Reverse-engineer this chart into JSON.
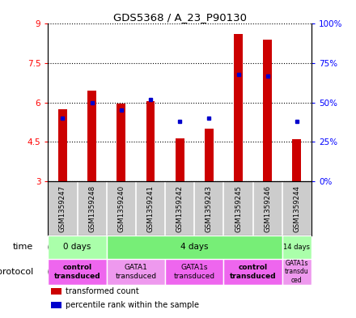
{
  "title": "GDS5368 / A_23_P90130",
  "samples": [
    "GSM1359247",
    "GSM1359248",
    "GSM1359240",
    "GSM1359241",
    "GSM1359242",
    "GSM1359243",
    "GSM1359245",
    "GSM1359246",
    "GSM1359244"
  ],
  "transformed_counts": [
    5.75,
    6.45,
    5.95,
    6.05,
    4.65,
    5.0,
    8.6,
    8.4,
    4.6
  ],
  "percentile_ranks": [
    40,
    50,
    45,
    52,
    38,
    40,
    68,
    67,
    38
  ],
  "ylim_left": [
    3,
    9
  ],
  "ylim_right": [
    0,
    100
  ],
  "yticks_left": [
    3,
    4.5,
    6,
    7.5,
    9
  ],
  "yticks_right": [
    0,
    25,
    50,
    75,
    100
  ],
  "ytick_labels_left": [
    "3",
    "4.5",
    "6",
    "7.5",
    "9"
  ],
  "ytick_labels_right": [
    "0%",
    "25%",
    "50%",
    "75%",
    "100%"
  ],
  "bar_bottom": 3,
  "bar_color": "#cc0000",
  "dot_color": "#0000cc",
  "bar_width": 0.3,
  "time_groups": [
    {
      "label": "0 days",
      "start": 0,
      "end": 2,
      "color": "#aaffaa"
    },
    {
      "label": "4 days",
      "start": 2,
      "end": 8,
      "color": "#77ee77"
    },
    {
      "label": "14 days",
      "start": 8,
      "end": 9,
      "color": "#aaffaa"
    }
  ],
  "protocol_groups": [
    {
      "label": "control\ntransduced",
      "start": 0,
      "end": 2,
      "color": "#ee66ee",
      "bold": true
    },
    {
      "label": "GATA1\ntransduced",
      "start": 2,
      "end": 4,
      "color": "#ee99ee",
      "bold": false
    },
    {
      "label": "GATA1s\ntransduced",
      "start": 4,
      "end": 6,
      "color": "#ee66ee",
      "bold": false
    },
    {
      "label": "control\ntransduced",
      "start": 6,
      "end": 8,
      "color": "#ee66ee",
      "bold": true
    },
    {
      "label": "GATA1s\ntransdu\nced",
      "start": 8,
      "end": 9,
      "color": "#ee99ee",
      "bold": false
    }
  ],
  "sample_row_color": "#cccccc",
  "legend_items": [
    {
      "color": "#cc0000",
      "label": "transformed count"
    },
    {
      "color": "#0000cc",
      "label": "percentile rank within the sample"
    }
  ]
}
